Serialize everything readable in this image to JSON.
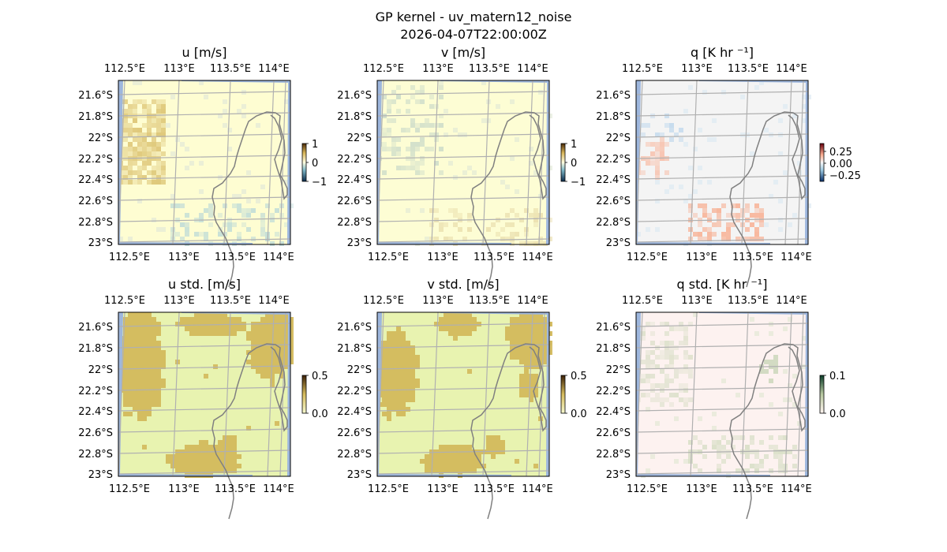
{
  "figure": {
    "title_line1": "GP kernel - uv_matern12_noise",
    "title_line2": "2026-04-07T22:00:00Z"
  },
  "colors": {
    "ocean": "#9db6dd",
    "grid": "#b0b0b0",
    "coast": "#808080",
    "u_base": "#fefdd2",
    "v_base": "#fdfdd4",
    "q_base": "#f4f4f4",
    "ustd_base": "#e8f3b0",
    "ustd_patch": "#d3b95c",
    "qstd_base": "#fdf2f0"
  },
  "chart_data": [
    {
      "type": "heatmap",
      "id": "u",
      "title": "u [m/s]",
      "lon_ticks": [
        "112.5°E",
        "113°E",
        "113.5°E",
        "114°E"
      ],
      "lat_ticks": [
        "21.6°S",
        "21.8°S",
        "22°S",
        "22.2°S",
        "22.4°S",
        "22.6°S",
        "22.8°S",
        "23°S"
      ],
      "colorbar": {
        "ticks": [
          "1",
          "0",
          "−1"
        ],
        "range": [
          -1,
          1
        ]
      }
    },
    {
      "type": "heatmap",
      "id": "v",
      "title": "v [m/s]",
      "lon_ticks": [
        "112.5°E",
        "113°E",
        "113.5°E",
        "114°E"
      ],
      "lat_ticks": [
        "21.6°S",
        "21.8°S",
        "22°S",
        "22.2°S",
        "22.4°S",
        "22.6°S",
        "22.8°S",
        "23°S"
      ],
      "colorbar": {
        "ticks": [
          "1",
          "0",
          "−1"
        ],
        "range": [
          -1,
          1
        ]
      }
    },
    {
      "type": "heatmap",
      "id": "q",
      "title": "q [K hr ⁻¹]",
      "lon_ticks": [
        "112.5°E",
        "113°E",
        "113.5°E",
        "114°E"
      ],
      "lat_ticks": [
        "21.6°S",
        "21.8°S",
        "22°S",
        "22.2°S",
        "22.4°S",
        "22.6°S",
        "22.8°S",
        "23°S"
      ],
      "colorbar": {
        "ticks": [
          "0.25",
          "0.00",
          "−0.25"
        ],
        "range": [
          -0.35,
          0.35
        ]
      }
    },
    {
      "type": "heatmap",
      "id": "ustd",
      "title": "u std. [m/s]",
      "lon_ticks": [
        "112.5°E",
        "113°E",
        "113.5°E",
        "114°E"
      ],
      "lat_ticks": [
        "21.6°S",
        "21.8°S",
        "22°S",
        "22.2°S",
        "22.4°S",
        "22.6°S",
        "22.8°S",
        "23°S"
      ],
      "colorbar": {
        "ticks": [
          "0.5",
          "0.0"
        ],
        "range": [
          0,
          0.5
        ]
      }
    },
    {
      "type": "heatmap",
      "id": "vstd",
      "title": "v std. [m/s]",
      "lon_ticks": [
        "112.5°E",
        "113°E",
        "113.5°E",
        "114°E"
      ],
      "lat_ticks": [
        "21.6°S",
        "21.8°S",
        "22°S",
        "22.2°S",
        "22.4°S",
        "22.6°S",
        "22.8°S",
        "23°S"
      ],
      "colorbar": {
        "ticks": [
          "0.5",
          "0.0"
        ],
        "range": [
          0,
          0.5
        ]
      }
    },
    {
      "type": "heatmap",
      "id": "qstd",
      "title": "q std. [K hr ⁻¹]",
      "lon_ticks": [
        "112.5°E",
        "113°E",
        "113.5°E",
        "114°E"
      ],
      "lat_ticks": [
        "21.6°S",
        "21.8°S",
        "22°S",
        "22.2°S",
        "22.4°S",
        "22.6°S",
        "22.8°S",
        "23°S"
      ],
      "colorbar": {
        "ticks": [
          "0.1",
          "0.0"
        ],
        "range": [
          0,
          0.1
        ]
      }
    }
  ]
}
